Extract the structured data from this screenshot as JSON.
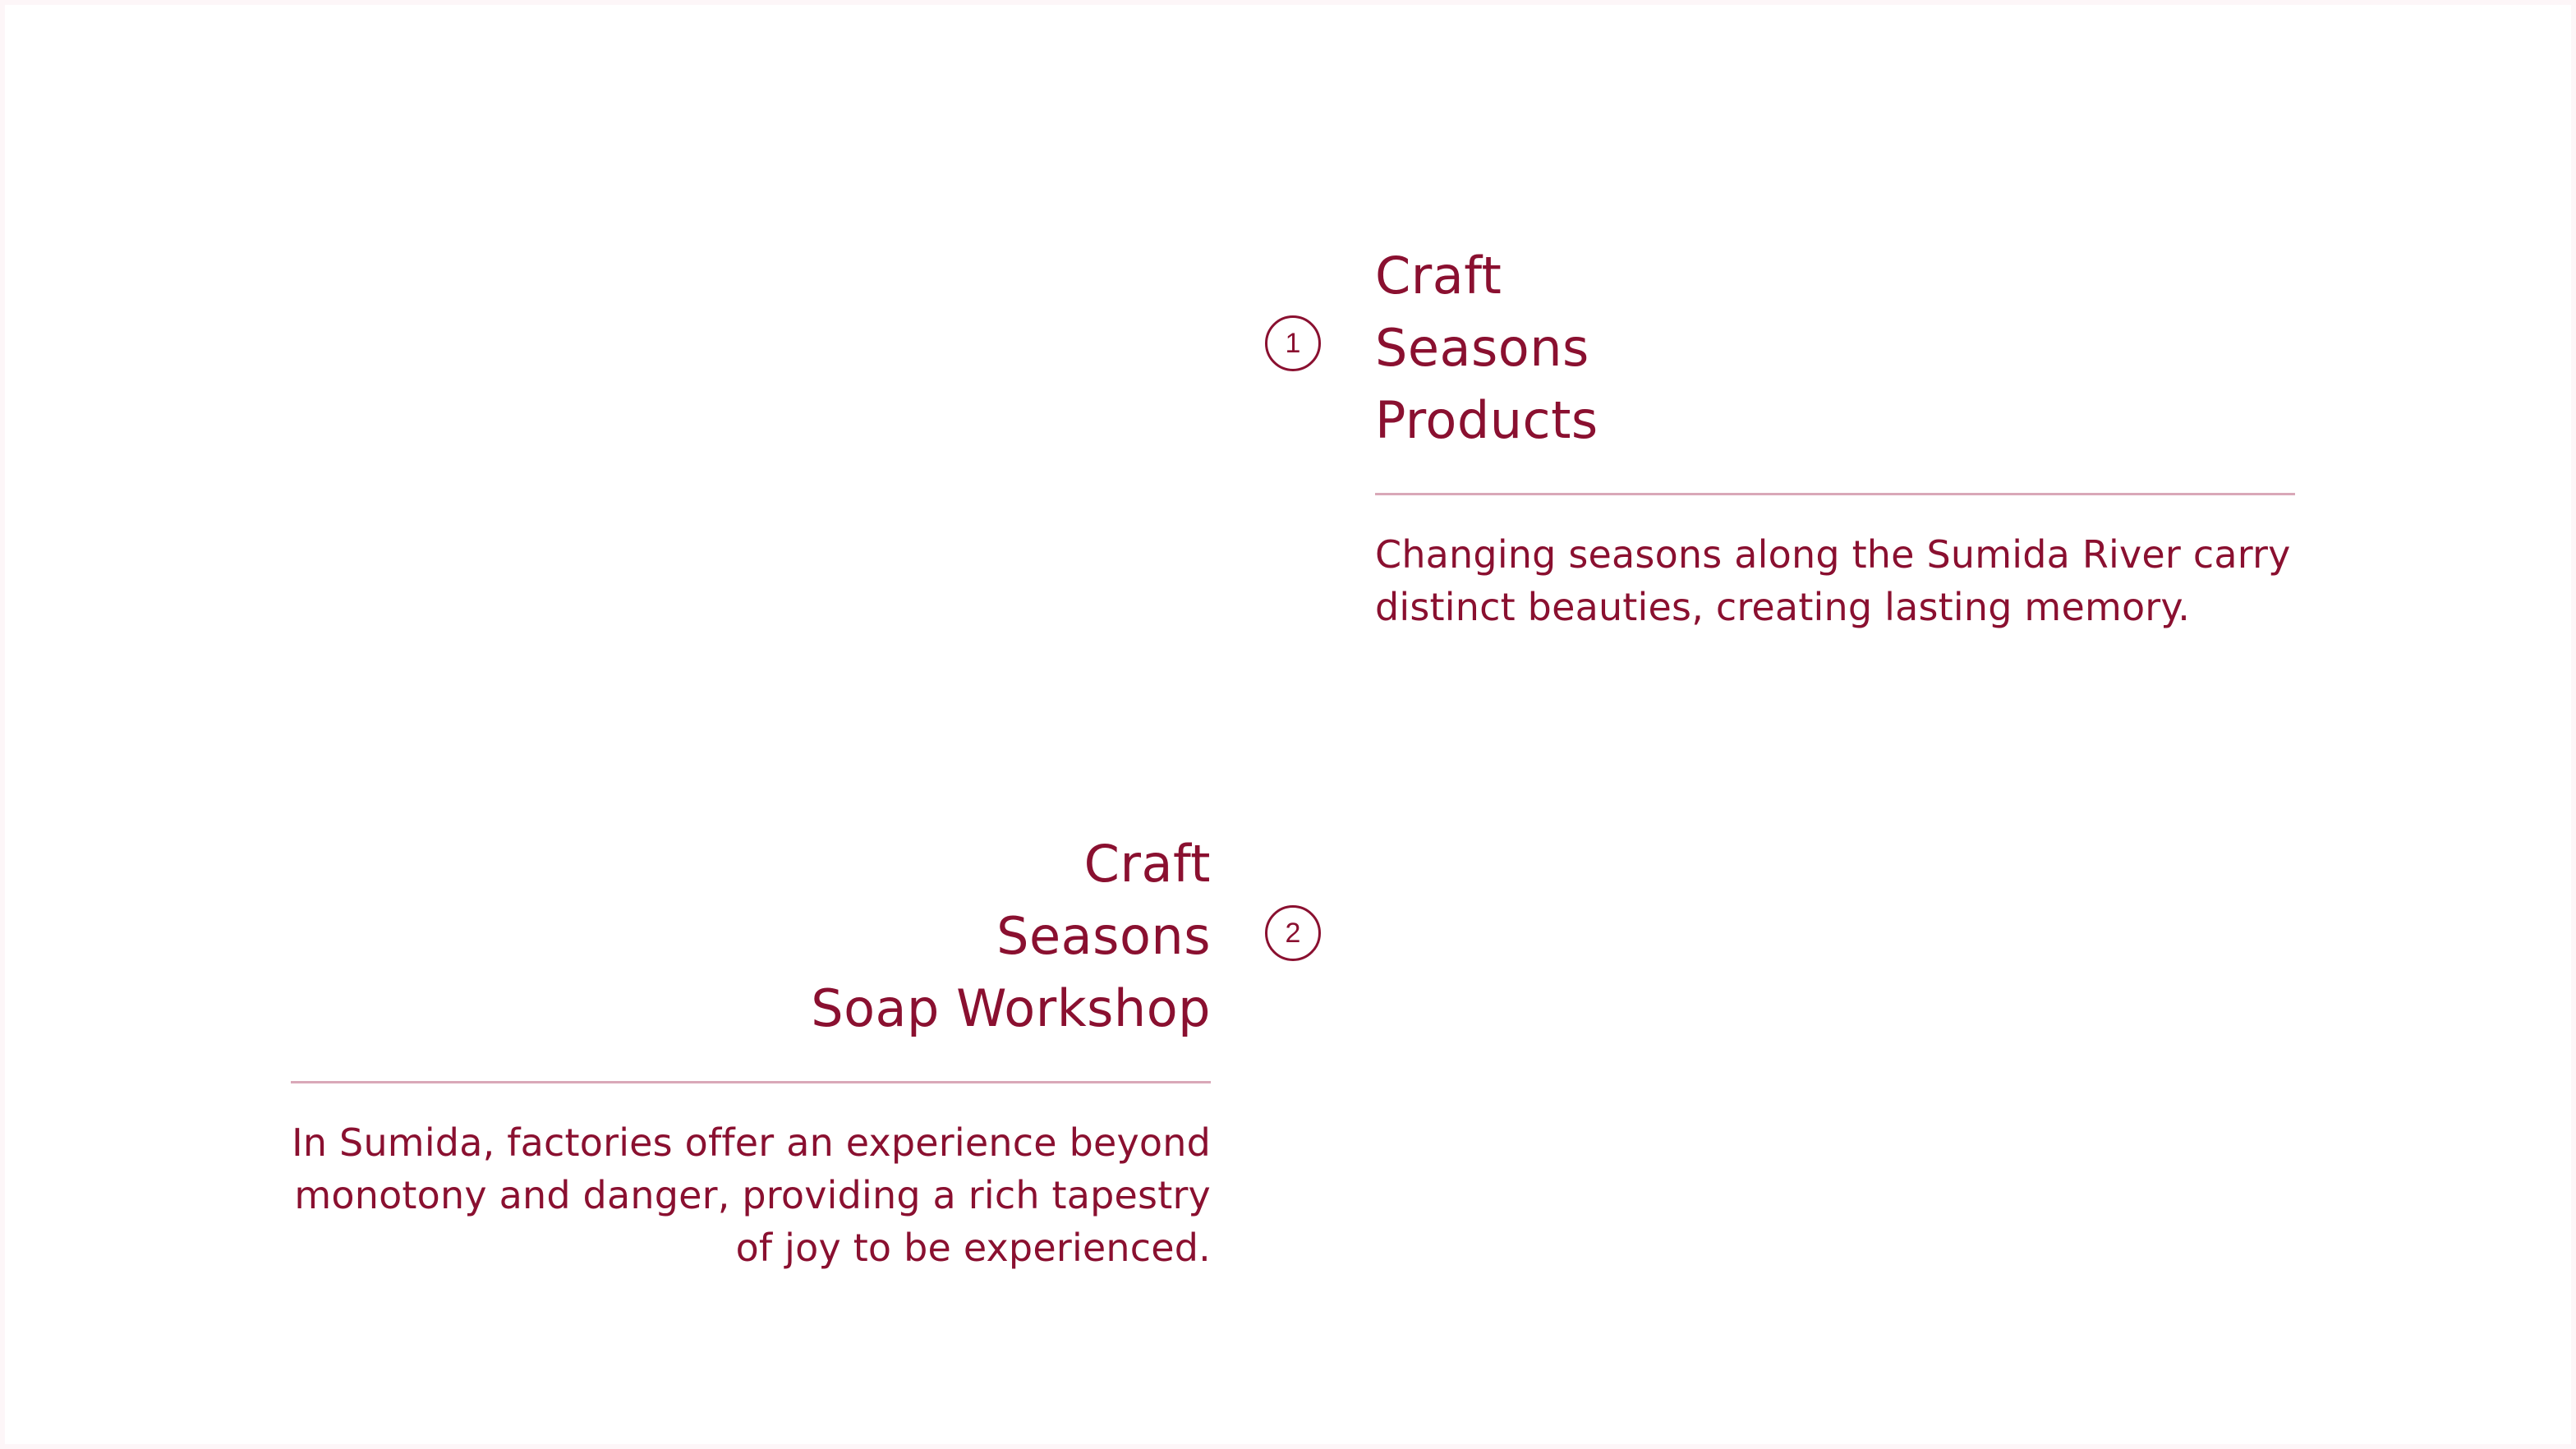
{
  "items": [
    {
      "number": "1",
      "title_lines": [
        "Craft",
        "Seasons",
        "Products"
      ],
      "description": "Changing seasons along the Sumida River carry distinct beauties, creating lasting memory."
    },
    {
      "number": "2",
      "title_lines": [
        "Craft",
        "Seasons",
        "Soap Workshop"
      ],
      "description": "In Sumida, factories offer an experience beyond monotony and danger, providing a rich tapestry of joy to be experienced."
    }
  ],
  "colors": {
    "accent": "#8a1030",
    "rule": "#d9a8b8",
    "background": "#ffffff",
    "frame": "#fdf6f8"
  }
}
